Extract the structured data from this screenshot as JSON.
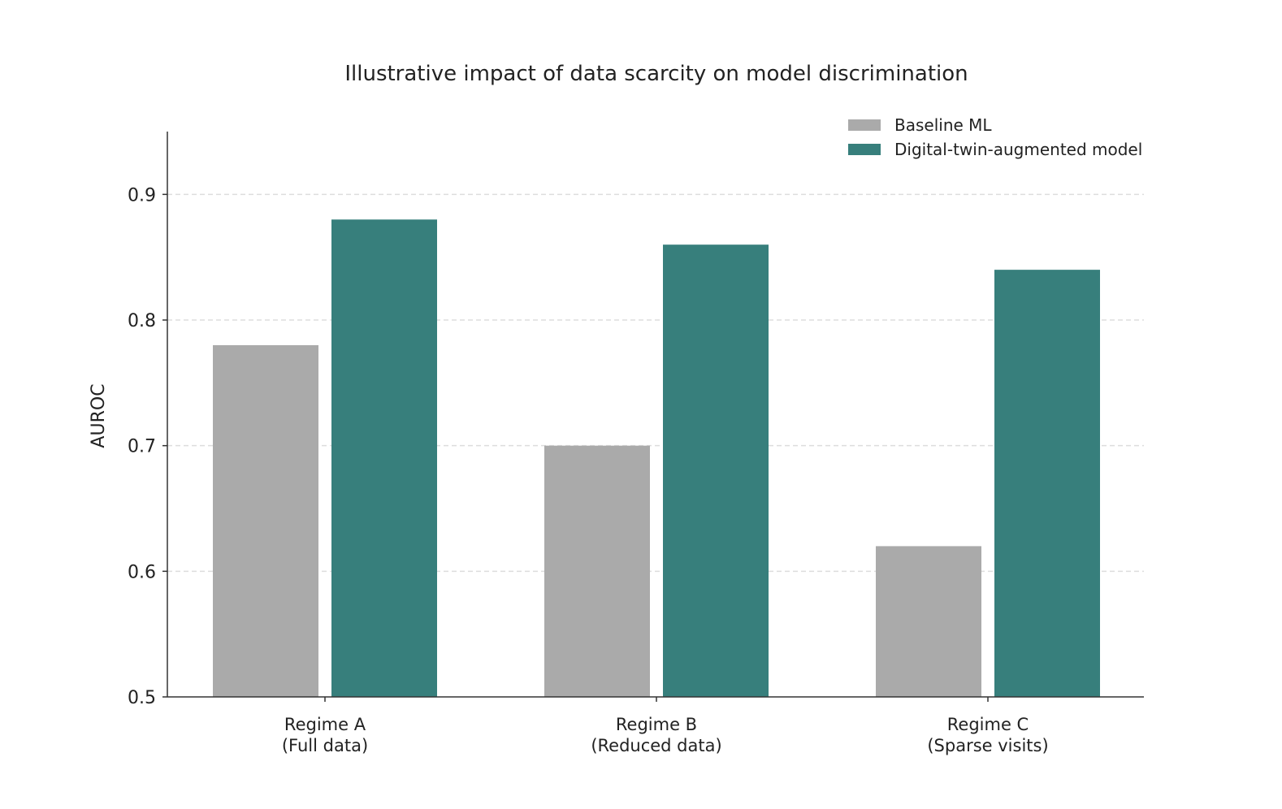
{
  "chart_data": {
    "type": "bar",
    "title": "Illustrative impact of data scarcity on model discrimination",
    "xlabel": "",
    "ylabel": "AUROC",
    "ylim": [
      0.5,
      0.95
    ],
    "yticks": [
      "0.5",
      "0.6",
      "0.7",
      "0.8",
      "0.9"
    ],
    "categories": [
      [
        "Regime A",
        "(Full data)"
      ],
      [
        "Regime B",
        "(Reduced data)"
      ],
      [
        "Regime C",
        "(Sparse visits)"
      ]
    ],
    "series": [
      {
        "name": "Baseline ML",
        "color": "#aaaaaa",
        "values": [
          0.78,
          0.7,
          0.62
        ]
      },
      {
        "name": "Digital-twin-augmented model",
        "color": "#377f7c",
        "values": [
          0.88,
          0.86,
          0.84
        ]
      }
    ],
    "grid": "horizontal dashed",
    "legend": "top-right"
  }
}
